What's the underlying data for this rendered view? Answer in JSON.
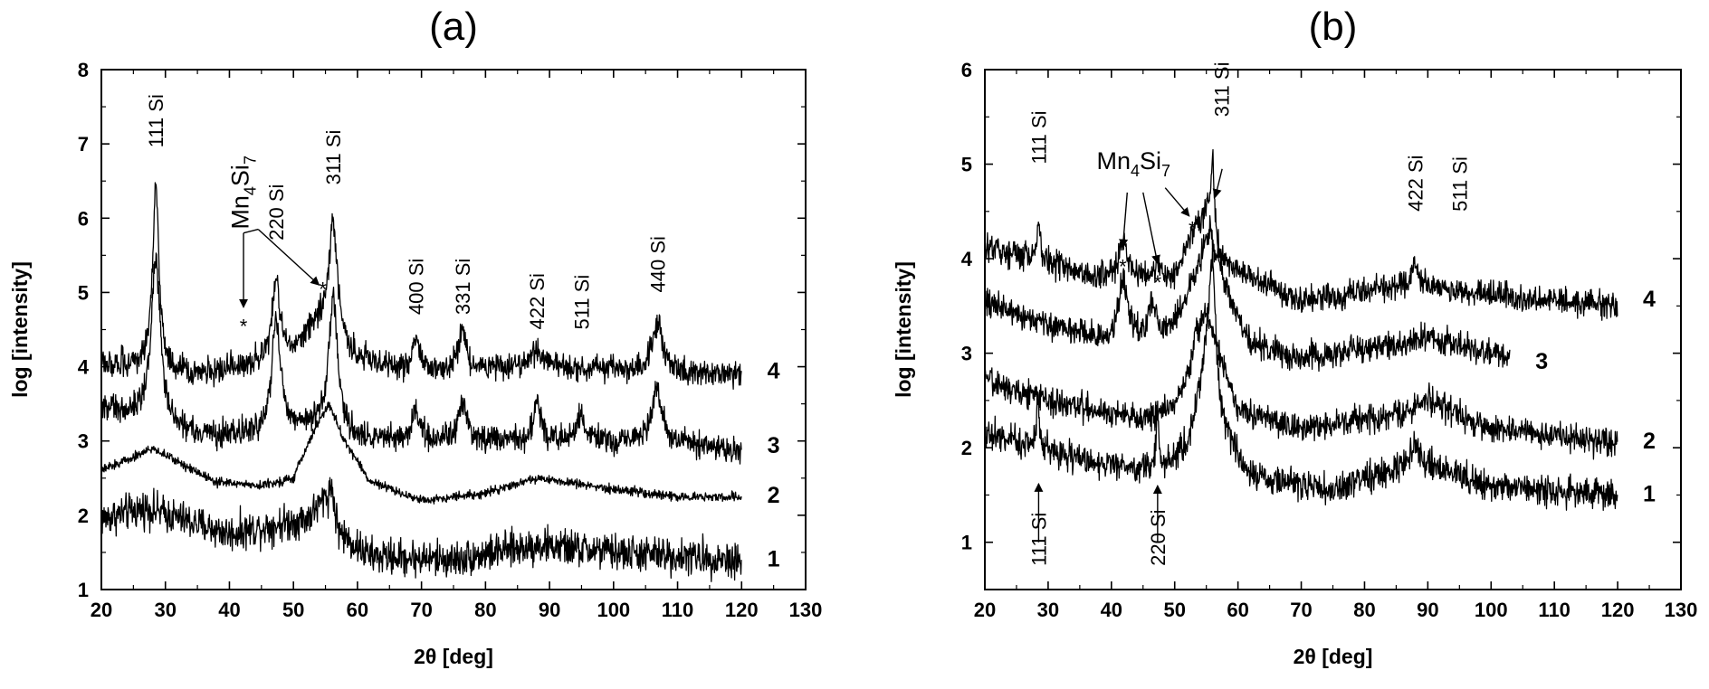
{
  "chart_data": [
    {
      "type": "line",
      "title": "(a)",
      "xlabel": "2θ [deg]",
      "ylabel": "log [intensity]",
      "xlim": [
        20,
        130
      ],
      "ylim": [
        1,
        8
      ],
      "xticks": [
        20,
        30,
        40,
        50,
        60,
        70,
        80,
        90,
        100,
        110,
        120,
        130
      ],
      "yticks": [
        1,
        2,
        3,
        4,
        5,
        6,
        7,
        8
      ],
      "series": [
        {
          "name": "1",
          "x_range": [
            20,
            120
          ],
          "baseline": [
            [
              20,
              1.95
            ],
            [
              27,
              2.1
            ],
            [
              35,
              1.88
            ],
            [
              40,
              1.75
            ],
            [
              52,
              1.95
            ],
            [
              55,
              2.2
            ],
            [
              57,
              1.75
            ],
            [
              62,
              1.45
            ],
            [
              75,
              1.4
            ],
            [
              88,
              1.6
            ],
            [
              100,
              1.5
            ],
            [
              120,
              1.4
            ]
          ],
          "noise": 0.12,
          "peaks": [
            {
              "center": 56.0,
              "height": 0.4,
              "width": 0.5
            }
          ]
        },
        {
          "name": "2",
          "x_range": [
            20,
            120
          ],
          "baseline": [
            [
              20,
              2.6
            ],
            [
              28,
              2.9
            ],
            [
              38,
              2.45
            ],
            [
              45,
              2.4
            ],
            [
              50,
              2.5
            ],
            [
              53,
              3.1
            ],
            [
              55.5,
              3.5
            ],
            [
              58,
              3.0
            ],
            [
              62,
              2.45
            ],
            [
              70,
              2.2
            ],
            [
              80,
              2.3
            ],
            [
              88,
              2.5
            ],
            [
              100,
              2.35
            ],
            [
              110,
              2.25
            ],
            [
              120,
              2.25
            ]
          ],
          "noise": 0.03,
          "peaks": []
        },
        {
          "name": "3",
          "x_range": [
            20,
            120
          ],
          "baseline": [
            [
              20,
              3.45
            ],
            [
              24,
              3.35
            ],
            [
              35,
              3.05
            ],
            [
              45,
              3.1
            ],
            [
              55,
              3.2
            ],
            [
              60,
              3.0
            ],
            [
              70,
              3.0
            ],
            [
              90,
              3.0
            ],
            [
              110,
              3.0
            ],
            [
              120,
              2.85
            ]
          ],
          "noise": 0.09,
          "peaks": [
            {
              "center": 28.5,
              "height": 2.2,
              "width": 0.9
            },
            {
              "center": 47.3,
              "height": 1.5,
              "width": 0.8
            },
            {
              "center": 56.2,
              "height": 1.8,
              "width": 0.8
            },
            {
              "center": 69.1,
              "height": 0.35,
              "width": 0.7
            },
            {
              "center": 76.4,
              "height": 0.5,
              "width": 0.8
            },
            {
              "center": 88.0,
              "height": 0.55,
              "width": 0.6
            },
            {
              "center": 94.9,
              "height": 0.4,
              "width": 0.5
            },
            {
              "center": 106.7,
              "height": 0.65,
              "width": 1.0
            }
          ]
        },
        {
          "name": "4",
          "x_range": [
            20,
            120
          ],
          "baseline": [
            [
              20,
              4.05
            ],
            [
              35,
              3.9
            ],
            [
              42,
              4.0
            ],
            [
              50,
              4.2
            ],
            [
              54,
              4.6
            ],
            [
              60,
              4.1
            ],
            [
              70,
              3.9
            ],
            [
              90,
              4.0
            ],
            [
              110,
              3.9
            ],
            [
              120,
              3.9
            ]
          ],
          "noise": 0.09,
          "peaks": [
            {
              "center": 28.5,
              "height": 2.5,
              "width": 0.6
            },
            {
              "center": 47.3,
              "height": 1.05,
              "width": 0.7
            },
            {
              "center": 56.2,
              "height": 1.5,
              "width": 0.8
            },
            {
              "center": 69.1,
              "height": 0.5,
              "width": 0.7
            },
            {
              "center": 76.4,
              "height": 0.6,
              "width": 0.7
            },
            {
              "center": 88.0,
              "height": 0.2,
              "width": 1.5
            },
            {
              "center": 106.9,
              "height": 0.7,
              "width": 1.0
            }
          ]
        }
      ],
      "curve_labels": [
        {
          "text": "1",
          "x": 124,
          "y": 1.42
        },
        {
          "text": "2",
          "x": 124,
          "y": 2.28
        },
        {
          "text": "3",
          "x": 124,
          "y": 2.95
        },
        {
          "text": "4",
          "x": 124,
          "y": 3.95
        }
      ],
      "peak_labels": [
        {
          "text": "111 Si",
          "x": 28.5,
          "y": 6.95
        },
        {
          "text": "220 Si",
          "x": 47.3,
          "y": 5.7
        },
        {
          "text": "311 Si",
          "x": 56.2,
          "y": 6.45
        },
        {
          "text": "400 Si",
          "x": 69.1,
          "y": 4.7
        },
        {
          "text": "331 Si",
          "x": 76.4,
          "y": 4.7
        },
        {
          "text": "422 Si",
          "x": 88.0,
          "y": 4.5
        },
        {
          "text": "511 Si",
          "x": 95.0,
          "y": 4.5
        },
        {
          "text": "440 Si",
          "x": 106.9,
          "y": 5.0
        }
      ],
      "stars": [
        {
          "text": "*",
          "x": 42.2,
          "y": 4.55
        },
        {
          "text": "*",
          "x": 54.6,
          "y": 5.05
        }
      ],
      "annotation": {
        "text": "Mn",
        "sub1": "4",
        "text2": "Si",
        "sub2": "7",
        "x": 43.0,
        "y": 5.85
      }
    },
    {
      "type": "line",
      "title": "(b)",
      "xlabel": "2θ [deg]",
      "ylabel": "log [intensity]",
      "xlim": [
        20,
        130
      ],
      "ylim": [
        0.5,
        6
      ],
      "xticks": [
        20,
        30,
        40,
        50,
        60,
        70,
        80,
        90,
        100,
        110,
        120,
        130
      ],
      "yticks": [
        1,
        2,
        3,
        4,
        5,
        6
      ],
      "series": [
        {
          "name": "1",
          "x_range": [
            20,
            120
          ],
          "baseline": [
            [
              20,
              2.15
            ],
            [
              30,
              1.98
            ],
            [
              40,
              1.8
            ],
            [
              48,
              1.78
            ],
            [
              52,
              2.0
            ],
            [
              55,
              2.8
            ],
            [
              57,
              2.2
            ],
            [
              62,
              1.7
            ],
            [
              75,
              1.55
            ],
            [
              88,
              1.85
            ],
            [
              100,
              1.6
            ],
            [
              120,
              1.5
            ]
          ],
          "noise": 0.08,
          "peaks": [
            {
              "center": 28.4,
              "height": 0.55,
              "width": 0.25
            },
            {
              "center": 47.3,
              "height": 0.6,
              "width": 0.25
            },
            {
              "center": 56.0,
              "height": 1.5,
              "width": 0.7
            },
            {
              "center": 88.0,
              "height": 0.2,
              "width": 0.6
            }
          ]
        },
        {
          "name": "2",
          "x_range": [
            20,
            120
          ],
          "baseline": [
            [
              20,
              2.72
            ],
            [
              30,
              2.5
            ],
            [
              45,
              2.3
            ],
            [
              50,
              2.45
            ],
            [
              53,
              2.9
            ],
            [
              55,
              3.45
            ],
            [
              57,
              3.0
            ],
            [
              60,
              2.4
            ],
            [
              70,
              2.2
            ],
            [
              85,
              2.35
            ],
            [
              90,
              2.5
            ],
            [
              100,
              2.2
            ],
            [
              120,
              2.05
            ]
          ],
          "noise": 0.07,
          "peaks": [
            {
              "center": 53.3,
              "height": 0.35,
              "width": 0.4
            }
          ]
        },
        {
          "name": "3",
          "x_range": [
            20,
            103
          ],
          "baseline": [
            [
              20,
              3.55
            ],
            [
              30,
              3.3
            ],
            [
              40,
              3.1
            ],
            [
              45,
              3.15
            ],
            [
              50,
              3.3
            ],
            [
              53,
              3.8
            ],
            [
              55.5,
              4.3
            ],
            [
              58,
              3.7
            ],
            [
              62,
              3.1
            ],
            [
              70,
              2.95
            ],
            [
              85,
              3.1
            ],
            [
              90,
              3.15
            ],
            [
              103,
              2.95
            ]
          ],
          "noise": 0.07,
          "peaks": [
            {
              "center": 41.8,
              "height": 0.7,
              "width": 0.9
            },
            {
              "center": 46.5,
              "height": 0.35,
              "width": 0.6
            }
          ]
        },
        {
          "name": "4",
          "x_range": [
            20,
            120
          ],
          "baseline": [
            [
              20,
              4.15
            ],
            [
              30,
              3.95
            ],
            [
              38,
              3.8
            ],
            [
              45,
              3.8
            ],
            [
              50,
              3.8
            ],
            [
              53,
              4.3
            ],
            [
              55,
              4.5
            ],
            [
              57,
              4.0
            ],
            [
              62,
              3.8
            ],
            [
              70,
              3.55
            ],
            [
              85,
              3.7
            ],
            [
              90,
              3.7
            ],
            [
              110,
              3.55
            ],
            [
              120,
              3.5
            ]
          ],
          "noise": 0.07,
          "peaks": [
            {
              "center": 28.5,
              "height": 0.45,
              "width": 0.3
            },
            {
              "center": 41.8,
              "height": 0.35,
              "width": 0.9
            },
            {
              "center": 47.3,
              "height": 0.15,
              "width": 0.5
            },
            {
              "center": 56.0,
              "height": 0.8,
              "width": 0.35
            },
            {
              "center": 88.0,
              "height": 0.25,
              "width": 0.6
            }
          ]
        }
      ],
      "curve_labels": [
        {
          "text": "1",
          "x": 124,
          "y": 1.52
        },
        {
          "text": "2",
          "x": 124,
          "y": 2.08
        },
        {
          "text": "3",
          "x": 107,
          "y": 2.92
        },
        {
          "text": "4",
          "x": 124,
          "y": 3.58
        }
      ],
      "peak_labels": [
        {
          "text": "111 Si",
          "x": 28.5,
          "y": 5.0
        },
        {
          "text": "311 Si",
          "x": 57.4,
          "y": 5.5
        },
        {
          "text": "422 Si",
          "x": 88.0,
          "y": 4.5
        },
        {
          "text": "511 Si",
          "x": 95.0,
          "y": 4.5
        },
        {
          "text": "111 Si",
          "x": 28.5,
          "y": 0.75
        },
        {
          "text": "220 Si",
          "x": 47.3,
          "y": 0.75
        }
      ],
      "stars": [
        {
          "text": "*",
          "x": 41.8,
          "y": 3.92
        },
        {
          "text": "*",
          "x": 47.3,
          "y": 3.75
        },
        {
          "text": "*",
          "x": 52.8,
          "y": 4.32
        }
      ],
      "annotation": {
        "text": "Mn",
        "sub1": "4",
        "text2": "Si",
        "sub2": "7",
        "x": 43.5,
        "y": 4.95
      }
    }
  ]
}
